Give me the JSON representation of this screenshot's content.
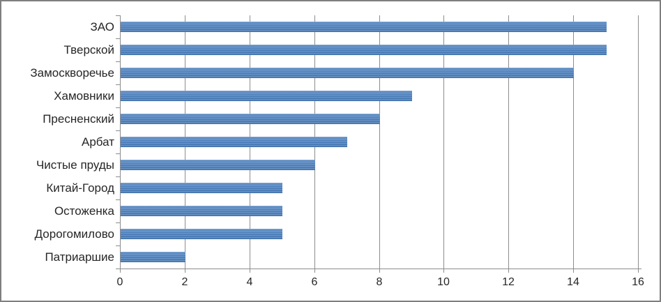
{
  "chart_data": {
    "type": "bar",
    "orientation": "horizontal",
    "title": "",
    "xlabel": "",
    "ylabel": "",
    "categories": [
      "ЗАО",
      "Тверской",
      "Замоскворечье",
      "Хамовники",
      "Пресненский",
      "Арбат",
      "Чистые пруды",
      "Китай-Город",
      "Остоженка",
      "Дорогомилово",
      "Патриаршие"
    ],
    "values": [
      15,
      15,
      14,
      9,
      8,
      7,
      6,
      5,
      5,
      5,
      2
    ],
    "xlim": [
      0,
      16
    ],
    "x_ticks": [
      0,
      2,
      4,
      6,
      8,
      10,
      12,
      14,
      16
    ],
    "grid": true,
    "legend": false,
    "colors": {
      "bar": "#4f81bd",
      "gridline": "#8c8c8c",
      "axis": "#8c8c8c",
      "text": "#262626",
      "frame_border": "#7f7f7f",
      "background": "#ffffff"
    }
  }
}
